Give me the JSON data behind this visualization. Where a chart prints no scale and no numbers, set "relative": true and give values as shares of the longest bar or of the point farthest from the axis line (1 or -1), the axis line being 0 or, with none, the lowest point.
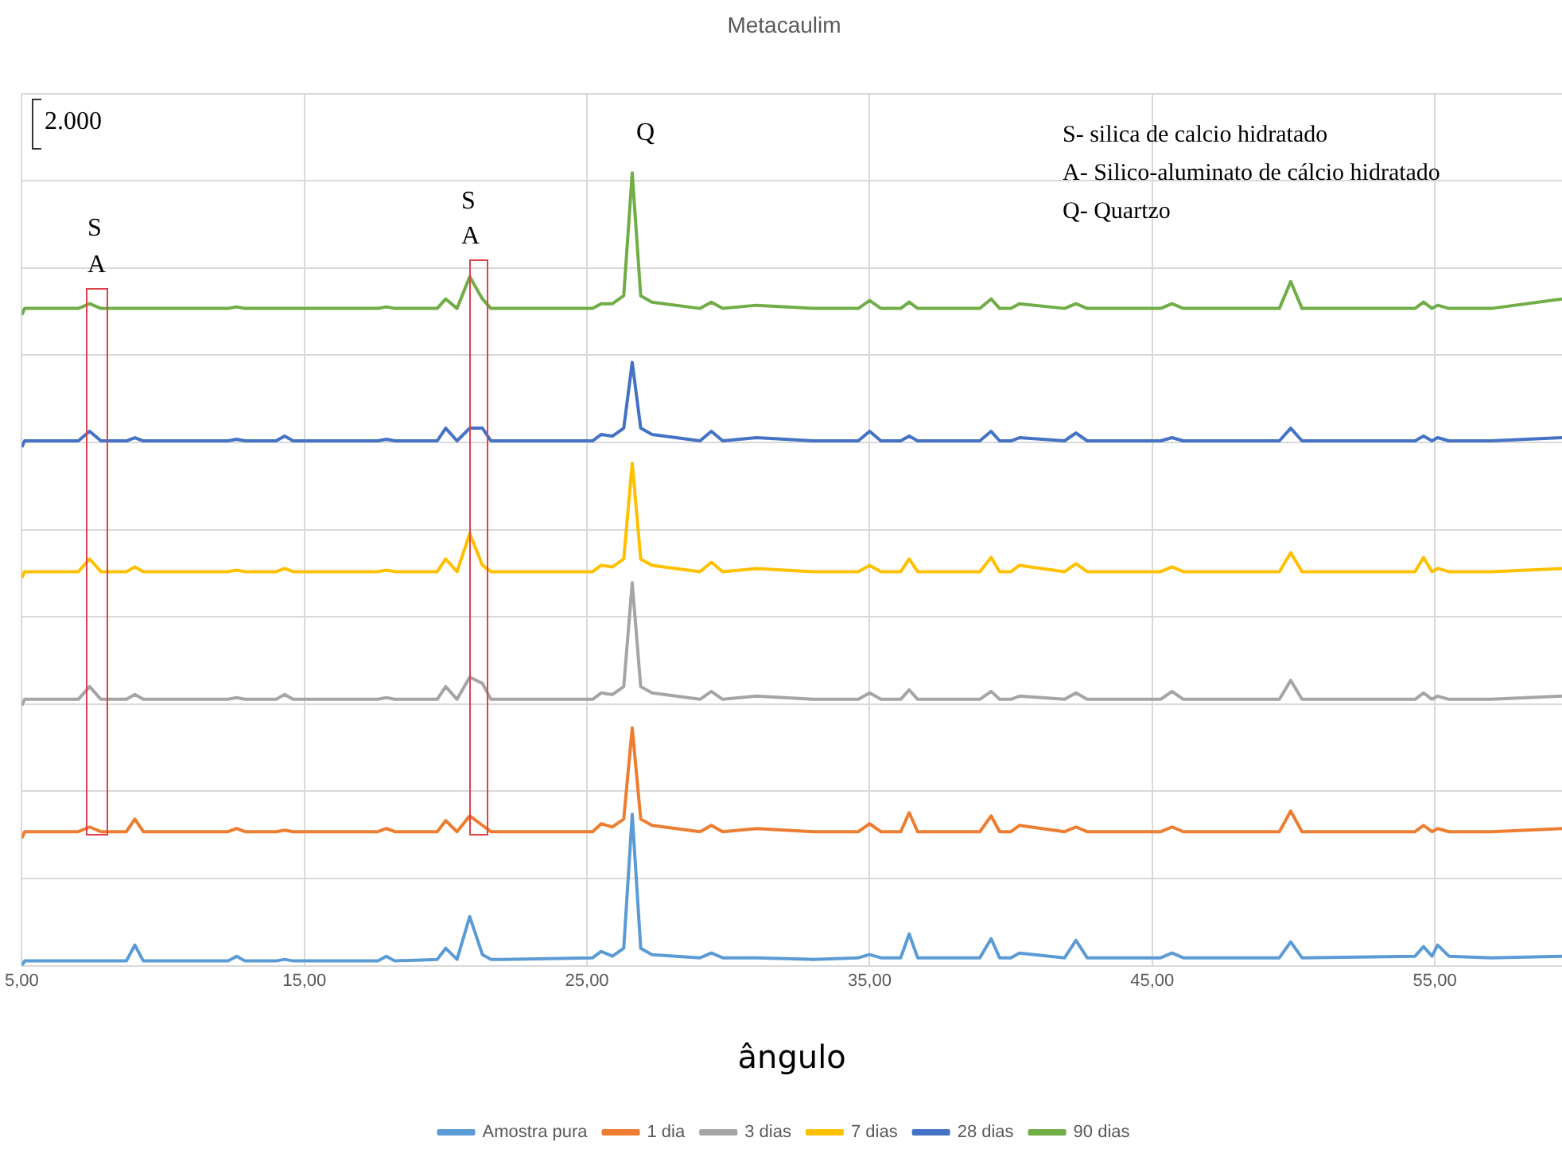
{
  "chart_data": {
    "type": "line",
    "title": "Metacaulim",
    "xlabel": "ângulo",
    "relative": true,
    "x": [
      5.0,
      5.1,
      7.0,
      7.4,
      7.8,
      8.7,
      9.0,
      9.3,
      12.3,
      12.6,
      12.9,
      14.0,
      14.3,
      14.6,
      17.6,
      17.9,
      18.2,
      19.7,
      20.0,
      20.4,
      20.85,
      21.3,
      21.6,
      22.0,
      25.2,
      25.5,
      25.9,
      26.3,
      26.6,
      26.9,
      27.3,
      29.0,
      29.4,
      29.8,
      31.0,
      33.0,
      34.6,
      35.0,
      35.4,
      36.1,
      36.4,
      36.7,
      38.9,
      39.3,
      39.6,
      40.0,
      40.3,
      41.9,
      42.3,
      42.7,
      45.3,
      45.7,
      46.1,
      49.5,
      49.9,
      50.3,
      54.3,
      54.6,
      54.9,
      55.1,
      55.5,
      57.0,
      59.5
    ],
    "xlim": [
      5,
      59.5
    ],
    "xticks": [
      {
        "value": 5,
        "label": "5,00"
      },
      {
        "value": 15,
        "label": "15,00"
      },
      {
        "value": 25,
        "label": "25,00"
      },
      {
        "value": 35,
        "label": "35,00"
      },
      {
        "value": 45,
        "label": "45,00"
      },
      {
        "value": 55,
        "label": "55,00"
      }
    ],
    "series": [
      {
        "name": "Amostra pura",
        "color": "#5b9bd5",
        "values": [
          0,
          0.006,
          0.006,
          0.006,
          0.006,
          0.006,
          0.026,
          0.006,
          0.006,
          0.012,
          0.006,
          0.006,
          0.008,
          0.006,
          0.006,
          0.012,
          0.006,
          0.008,
          0.022,
          0.008,
          0.062,
          0.014,
          0.008,
          0.008,
          0.01,
          0.018,
          0.012,
          0.022,
          0.191,
          0.022,
          0.014,
          0.01,
          0.016,
          0.01,
          0.01,
          0.008,
          0.01,
          0.014,
          0.01,
          0.01,
          0.04,
          0.01,
          0.01,
          0.034,
          0.01,
          0.01,
          0.016,
          0.01,
          0.032,
          0.01,
          0.01,
          0.016,
          0.01,
          0.01,
          0.03,
          0.01,
          0.012,
          0.024,
          0.012,
          0.026,
          0.012,
          0.01,
          0.012
        ]
      },
      {
        "name": "1 dia",
        "color": "#ed7d31",
        "values": [
          0.161,
          0.169,
          0.169,
          0.175,
          0.169,
          0.169,
          0.185,
          0.169,
          0.169,
          0.173,
          0.169,
          0.169,
          0.171,
          0.169,
          0.169,
          0.173,
          0.169,
          0.169,
          0.183,
          0.169,
          0.189,
          0.177,
          0.169,
          0.169,
          0.169,
          0.179,
          0.175,
          0.185,
          0.3,
          0.185,
          0.177,
          0.169,
          0.177,
          0.169,
          0.173,
          0.169,
          0.169,
          0.179,
          0.169,
          0.169,
          0.193,
          0.169,
          0.169,
          0.189,
          0.169,
          0.169,
          0.177,
          0.169,
          0.175,
          0.169,
          0.169,
          0.175,
          0.169,
          0.169,
          0.195,
          0.169,
          0.169,
          0.177,
          0.169,
          0.173,
          0.169,
          0.169,
          0.173
        ]
      },
      {
        "name": "3 dias",
        "color": "#a5a5a5",
        "values": [
          0.328,
          0.336,
          0.336,
          0.352,
          0.336,
          0.336,
          0.342,
          0.336,
          0.336,
          0.338,
          0.336,
          0.336,
          0.342,
          0.336,
          0.336,
          0.338,
          0.336,
          0.336,
          0.352,
          0.336,
          0.364,
          0.356,
          0.336,
          0.336,
          0.336,
          0.344,
          0.342,
          0.352,
          0.483,
          0.352,
          0.344,
          0.336,
          0.346,
          0.336,
          0.34,
          0.336,
          0.336,
          0.344,
          0.336,
          0.336,
          0.348,
          0.336,
          0.336,
          0.346,
          0.336,
          0.336,
          0.34,
          0.336,
          0.344,
          0.336,
          0.336,
          0.346,
          0.336,
          0.336,
          0.36,
          0.336,
          0.336,
          0.344,
          0.336,
          0.34,
          0.336,
          0.336,
          0.34
        ]
      },
      {
        "name": "7 dias",
        "color": "#ffc000",
        "values": [
          0.489,
          0.497,
          0.497,
          0.513,
          0.497,
          0.497,
          0.503,
          0.497,
          0.497,
          0.499,
          0.497,
          0.497,
          0.501,
          0.497,
          0.497,
          0.499,
          0.497,
          0.497,
          0.513,
          0.497,
          0.545,
          0.505,
          0.497,
          0.497,
          0.497,
          0.505,
          0.503,
          0.513,
          0.634,
          0.513,
          0.505,
          0.497,
          0.509,
          0.497,
          0.501,
          0.497,
          0.497,
          0.505,
          0.497,
          0.497,
          0.513,
          0.497,
          0.497,
          0.515,
          0.497,
          0.497,
          0.505,
          0.497,
          0.507,
          0.497,
          0.497,
          0.503,
          0.497,
          0.497,
          0.521,
          0.497,
          0.497,
          0.515,
          0.497,
          0.501,
          0.497,
          0.497,
          0.501
        ]
      },
      {
        "name": "28 dias",
        "color": "#4472c4",
        "values": [
          0.654,
          0.662,
          0.662,
          0.674,
          0.662,
          0.662,
          0.666,
          0.662,
          0.662,
          0.664,
          0.662,
          0.662,
          0.668,
          0.662,
          0.662,
          0.664,
          0.662,
          0.662,
          0.678,
          0.662,
          0.678,
          0.678,
          0.662,
          0.662,
          0.662,
          0.67,
          0.668,
          0.678,
          0.761,
          0.678,
          0.67,
          0.662,
          0.674,
          0.662,
          0.666,
          0.662,
          0.662,
          0.674,
          0.662,
          0.662,
          0.668,
          0.662,
          0.662,
          0.674,
          0.662,
          0.662,
          0.666,
          0.662,
          0.672,
          0.662,
          0.662,
          0.666,
          0.662,
          0.662,
          0.678,
          0.662,
          0.662,
          0.668,
          0.662,
          0.666,
          0.662,
          0.662,
          0.666
        ]
      },
      {
        "name": "90 dias",
        "color": "#70ad47",
        "values": [
          0.821,
          0.829,
          0.829,
          0.835,
          0.829,
          0.829,
          0.829,
          0.829,
          0.829,
          0.831,
          0.829,
          0.829,
          0.829,
          0.829,
          0.829,
          0.831,
          0.829,
          0.829,
          0.841,
          0.829,
          0.869,
          0.841,
          0.829,
          0.829,
          0.829,
          0.835,
          0.835,
          0.845,
          1.0,
          0.845,
          0.837,
          0.829,
          0.837,
          0.829,
          0.833,
          0.829,
          0.829,
          0.839,
          0.829,
          0.829,
          0.837,
          0.829,
          0.829,
          0.841,
          0.829,
          0.829,
          0.835,
          0.829,
          0.835,
          0.829,
          0.829,
          0.835,
          0.829,
          0.829,
          0.863,
          0.829,
          0.829,
          0.837,
          0.829,
          0.833,
          0.829,
          0.829,
          0.841
        ]
      }
    ],
    "annotations": [
      "2.000",
      "S- silica de calcio hidratado",
      "A- Silico-aluminato de cálcio hidratado",
      "Q- Quartzo",
      "S",
      "A",
      "S",
      "A",
      "Q"
    ],
    "grid": true,
    "legend": "bottom",
    "marker": "none",
    "line_style": "solid"
  }
}
